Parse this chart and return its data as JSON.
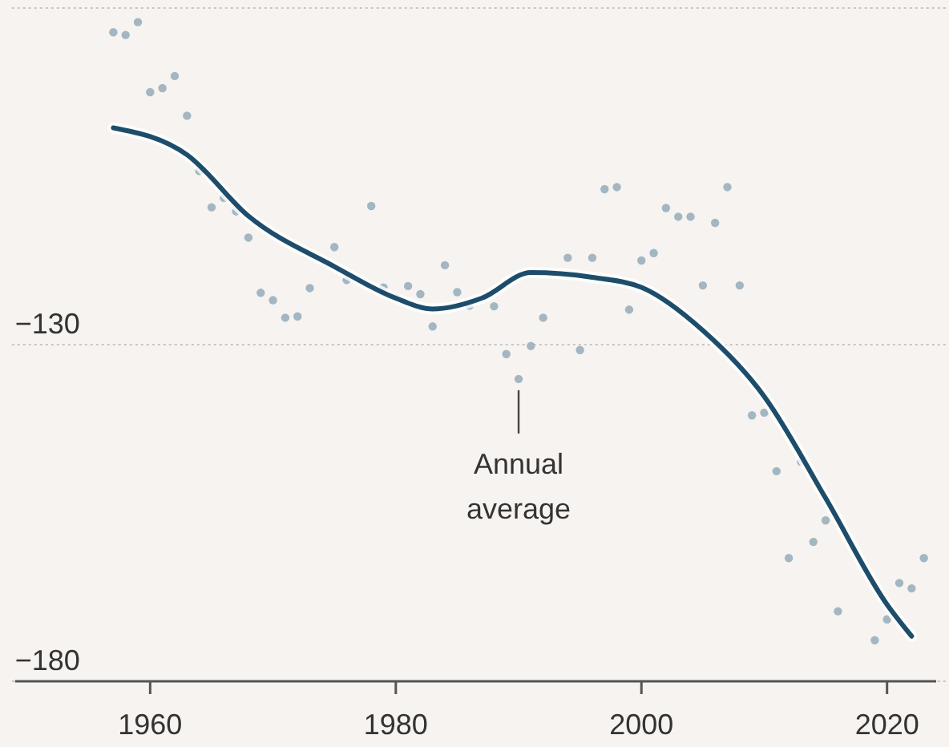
{
  "chart_data": {
    "type": "scatter",
    "xlim": [
      1949,
      2024
    ],
    "xticks": [
      1960,
      1980,
      2000,
      2020
    ],
    "ylim": [
      -180,
      -80
    ],
    "yticks": [
      {
        "value": -80,
        "label": null
      },
      -130,
      -180
    ],
    "grid": "y",
    "annotations": [
      {
        "text": "Annual average",
        "x": 1990,
        "y": -135.1
      }
    ],
    "series": [
      {
        "marker": "circle",
        "color": "#a3b6c2",
        "x": [
          1957,
          1958,
          1959,
          1960,
          1961,
          1962,
          1963,
          1964,
          1965,
          1966,
          1967,
          1968,
          1969,
          1970,
          1971,
          1972,
          1973,
          1975,
          1976,
          1978,
          1979,
          1980,
          1981,
          1982,
          1983,
          1984,
          1985,
          1986,
          1988,
          1989,
          1990,
          1991,
          1992,
          1994,
          1995,
          1996,
          1997,
          1998,
          1999,
          2000,
          2001,
          2002,
          2003,
          2004,
          2005,
          2006,
          2007,
          2008,
          2009,
          2010,
          2011,
          2012,
          2013,
          2014,
          2015,
          2016,
          2019,
          2020,
          2021,
          2022,
          2023
        ],
        "values": [
          -83.6,
          -84.0,
          -82.1,
          -92.5,
          -91.9,
          -90.1,
          -96.0,
          -104.2,
          -109.6,
          -108.2,
          -110.2,
          -114.1,
          -122.3,
          -123.4,
          -126.0,
          -125.8,
          -121.6,
          -115.5,
          -120.4,
          -109.4,
          -121.5,
          -123.0,
          -121.3,
          -122.5,
          -127.3,
          -118.2,
          -122.2,
          -124.2,
          -124.3,
          -131.4,
          -135.1,
          -130.2,
          -126.0,
          -117.1,
          -130.8,
          -117.1,
          -106.9,
          -106.6,
          -124.8,
          -117.5,
          -116.4,
          -109.7,
          -111.0,
          -111.0,
          -121.2,
          -111.9,
          -106.6,
          -121.2,
          -140.5,
          -140.1,
          -148.8,
          -161.7,
          -147.4,
          -159.3,
          -156.1,
          -169.6,
          -173.9,
          -170.8,
          -165.4,
          -166.2,
          -161.7
        ]
      },
      {
        "type": "line",
        "color": "#1d4d6b",
        "line_style": "solid",
        "x": [
          1957,
          1963,
          1968,
          1975,
          1980,
          1983,
          1987,
          1991,
          1996,
          2000,
          2005,
          2010,
          2015,
          2020,
          2022
        ],
        "values": [
          -97.8,
          -101.8,
          -110.9,
          -118.4,
          -123.1,
          -124.7,
          -123.1,
          -119.3,
          -120.0,
          -121.5,
          -127.9,
          -137.7,
          -152.8,
          -168.6,
          -173.3
        ]
      }
    ]
  }
}
